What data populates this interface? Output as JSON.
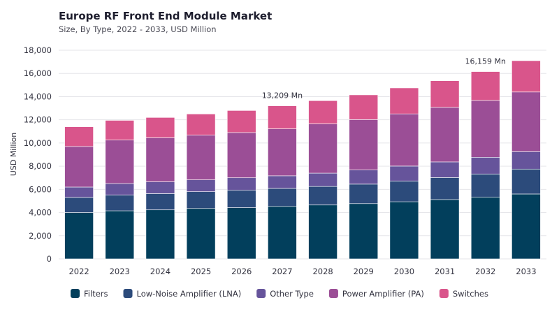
{
  "chart_data": {
    "type": "bar",
    "stacked": true,
    "title": "Europe RF Front End Module Market",
    "subtitle": "Size, By Type, 2022 - 2033, USD Million",
    "ylabel": "USD Million",
    "xlabel": "",
    "ylim": [
      0,
      18000
    ],
    "yticks": [
      "0",
      "2,000",
      "4,000",
      "6,000",
      "8,000",
      "10,000",
      "12,000",
      "14,000",
      "16,000",
      "18,000"
    ],
    "grid": true,
    "legend_position": "bottom",
    "categories": [
      "2022",
      "2023",
      "2024",
      "2025",
      "2026",
      "2027",
      "2028",
      "2029",
      "2030",
      "2031",
      "2032",
      "2033"
    ],
    "series": [
      {
        "name": "Filters",
        "color": "#023f5c",
        "values": [
          4000,
          4150,
          4230,
          4350,
          4420,
          4530,
          4650,
          4770,
          4930,
          5120,
          5320,
          5600
        ]
      },
      {
        "name": "Low-Noise Amplifier (LNA)",
        "color": "#2c4b7b",
        "values": [
          1300,
          1350,
          1400,
          1450,
          1500,
          1550,
          1600,
          1680,
          1780,
          1900,
          2000,
          2150
        ]
      },
      {
        "name": "Other Type",
        "color": "#66549b",
        "values": [
          900,
          1000,
          1020,
          1020,
          1080,
          1090,
          1150,
          1220,
          1300,
          1350,
          1450,
          1500
        ]
      },
      {
        "name": "Power Amplifier (PA)",
        "color": "#9b4e96",
        "values": [
          3500,
          3750,
          3800,
          3850,
          3900,
          4050,
          4250,
          4350,
          4500,
          4700,
          4900,
          5150
        ]
      },
      {
        "name": "Switches",
        "color": "#d9558b",
        "values": [
          1700,
          1700,
          1750,
          1830,
          1900,
          1989,
          2000,
          2130,
          2240,
          2300,
          2489,
          2700
        ]
      }
    ],
    "annotations": [
      {
        "category": "2027",
        "text": "13,209 Mn"
      },
      {
        "category": "2032",
        "text": "16,159 Mn"
      }
    ]
  }
}
